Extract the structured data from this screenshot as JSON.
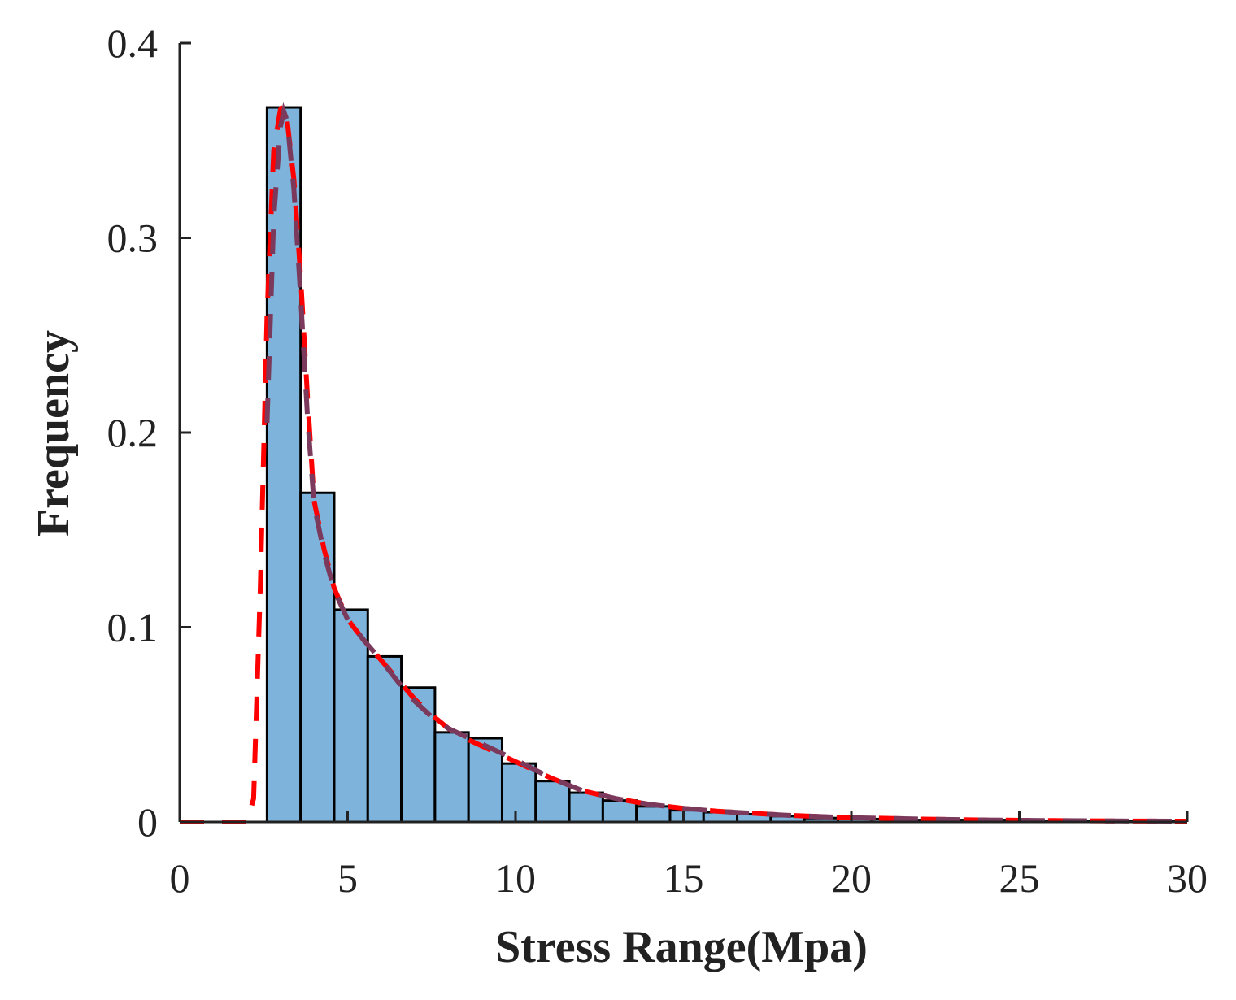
{
  "chart_data": {
    "type": "bar",
    "title": "",
    "xlabel": "Stress Range(Mpa)",
    "ylabel": "Frequency",
    "xlim": [
      0,
      30
    ],
    "ylim": [
      0,
      0.4
    ],
    "grid": false,
    "x_ticks": [
      {
        "value": 0,
        "label": "0"
      },
      {
        "value": 5,
        "label": "5"
      },
      {
        "value": 10,
        "label": "10"
      },
      {
        "value": 15,
        "label": "15"
      },
      {
        "value": 20,
        "label": "20"
      },
      {
        "value": 25,
        "label": "25"
      },
      {
        "value": 30,
        "label": "30"
      }
    ],
    "y_ticks": [
      {
        "value": 0,
        "label": "0"
      },
      {
        "value": 0.1,
        "label": "0.1"
      },
      {
        "value": 0.2,
        "label": "0.2"
      },
      {
        "value": 0.3,
        "label": "0.3"
      },
      {
        "value": 0.4,
        "label": "0.4"
      }
    ],
    "bin_width": 1,
    "bin_starts": [
      2.6,
      3.6,
      4.6,
      5.6,
      6.6,
      7.6,
      8.6,
      9.6,
      10.6,
      11.6,
      12.6,
      13.6,
      14.6,
      15.6,
      16.6,
      17.6,
      18.6,
      19.6,
      20.6,
      21.6,
      22.6,
      23.6,
      24.6,
      25.6,
      26.6,
      27.6,
      28.6
    ],
    "values": [
      0.367,
      0.169,
      0.109,
      0.085,
      0.069,
      0.046,
      0.043,
      0.03,
      0.021,
      0.015,
      0.011,
      0.008,
      0.006,
      0.005,
      0.004,
      0.003,
      0.002,
      0.002,
      0.0015,
      0.001,
      0.001,
      0.001,
      0.0008,
      0.0006,
      0.0005,
      0.0004,
      0.0003
    ],
    "bar_color": "#7EB4DC",
    "bar_edge_color": "#000000",
    "series": [
      {
        "name": "fit-red",
        "style": "dashed",
        "color": "#FF0000",
        "x": [
          0,
          1,
          2,
          2.2,
          2.4,
          2.6,
          2.8,
          3.0,
          3.1,
          3.2,
          3.4,
          3.6,
          3.8,
          4.0,
          4.3,
          4.6,
          5.0,
          5.5,
          6.0,
          6.5,
          7.0,
          7.5,
          8.0,
          8.5,
          9.0,
          9.5,
          10,
          11,
          12,
          13,
          14,
          15,
          16,
          17,
          18,
          19,
          20,
          22,
          24,
          26,
          28,
          30
        ],
        "y": [
          0,
          0,
          0,
          0.012,
          0.12,
          0.26,
          0.345,
          0.366,
          0.368,
          0.36,
          0.33,
          0.28,
          0.22,
          0.165,
          0.14,
          0.12,
          0.104,
          0.093,
          0.083,
          0.073,
          0.063,
          0.055,
          0.048,
          0.043,
          0.039,
          0.035,
          0.031,
          0.023,
          0.016,
          0.012,
          0.009,
          0.007,
          0.0055,
          0.0045,
          0.0035,
          0.0028,
          0.0022,
          0.0015,
          0.001,
          0.0007,
          0.0005,
          0.0004
        ]
      },
      {
        "name": "fit-purple",
        "style": "dashed",
        "color": "#7B3A5C",
        "x": [
          2.6,
          2.8,
          3.0,
          3.1,
          3.2,
          3.4,
          3.6,
          3.8,
          4.0,
          4.3,
          4.6,
          5.0,
          5.5,
          6.0,
          6.5,
          7.0,
          7.5,
          8.0,
          8.5,
          9.0,
          9.5,
          10,
          11,
          12,
          13,
          14,
          15,
          16,
          17,
          18,
          19,
          20,
          22,
          24,
          26,
          28,
          30
        ],
        "y": [
          0.205,
          0.31,
          0.357,
          0.365,
          0.36,
          0.325,
          0.27,
          0.21,
          0.163,
          0.138,
          0.119,
          0.104,
          0.093,
          0.083,
          0.072,
          0.062,
          0.054,
          0.048,
          0.044,
          0.04,
          0.036,
          0.032,
          0.023,
          0.016,
          0.012,
          0.009,
          0.007,
          0.0055,
          0.0045,
          0.0035,
          0.0028,
          0.0022,
          0.0015,
          0.001,
          0.0007,
          0.0005,
          0.0004
        ]
      }
    ]
  }
}
